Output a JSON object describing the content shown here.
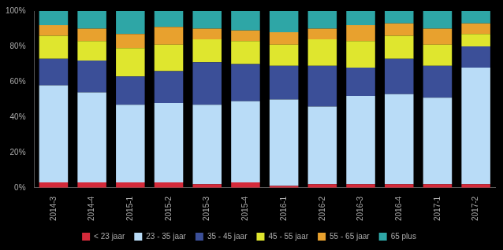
{
  "chart_data": {
    "type": "bar",
    "stacked": true,
    "grid": false,
    "legend": "bottom",
    "categories": [
      "2014-3",
      "2014-4",
      "2015-1",
      "2015-2",
      "2015-3",
      "2015-4",
      "2016-1",
      "2016-2",
      "2016-3",
      "2016-4",
      "2017-1",
      "2017-2"
    ],
    "series": [
      {
        "name": "< 23 jaar",
        "color": "#d42a3a",
        "values": [
          3,
          3,
          3,
          3,
          2,
          3,
          1,
          2,
          2,
          2,
          2,
          2
        ]
      },
      {
        "name": "23 - 35 jaar",
        "color": "#b9dcf7",
        "values": [
          55,
          51,
          44,
          45,
          45,
          46,
          49,
          44,
          50,
          51,
          49,
          66
        ]
      },
      {
        "name": "35 - 45 jaar",
        "color": "#3b4f98",
        "values": [
          15,
          18,
          16,
          18,
          24,
          21,
          19,
          23,
          16,
          20,
          18,
          12
        ]
      },
      {
        "name": "45 - 55 jaar",
        "color": "#dfe62e",
        "values": [
          13,
          11,
          16,
          15,
          13,
          13,
          12,
          15,
          15,
          13,
          12,
          7
        ]
      },
      {
        "name": "55 - 65 jaar",
        "color": "#e8a12e",
        "values": [
          6,
          7,
          8,
          10,
          6,
          6,
          7,
          6,
          9,
          7,
          9,
          6
        ]
      },
      {
        "name": "65 plus",
        "color": "#2ea6a6",
        "values": [
          8,
          10,
          13,
          9,
          10,
          11,
          12,
          10,
          8,
          7,
          10,
          7
        ]
      }
    ],
    "ylim": [
      0,
      100
    ],
    "yticks": [
      {
        "value": 0,
        "label": "0%"
      },
      {
        "value": 20,
        "label": "20%"
      },
      {
        "value": 40,
        "label": "40%"
      },
      {
        "value": 60,
        "label": "60%"
      },
      {
        "value": 80,
        "label": "80%"
      },
      {
        "value": 100,
        "label": "100%"
      }
    ]
  }
}
